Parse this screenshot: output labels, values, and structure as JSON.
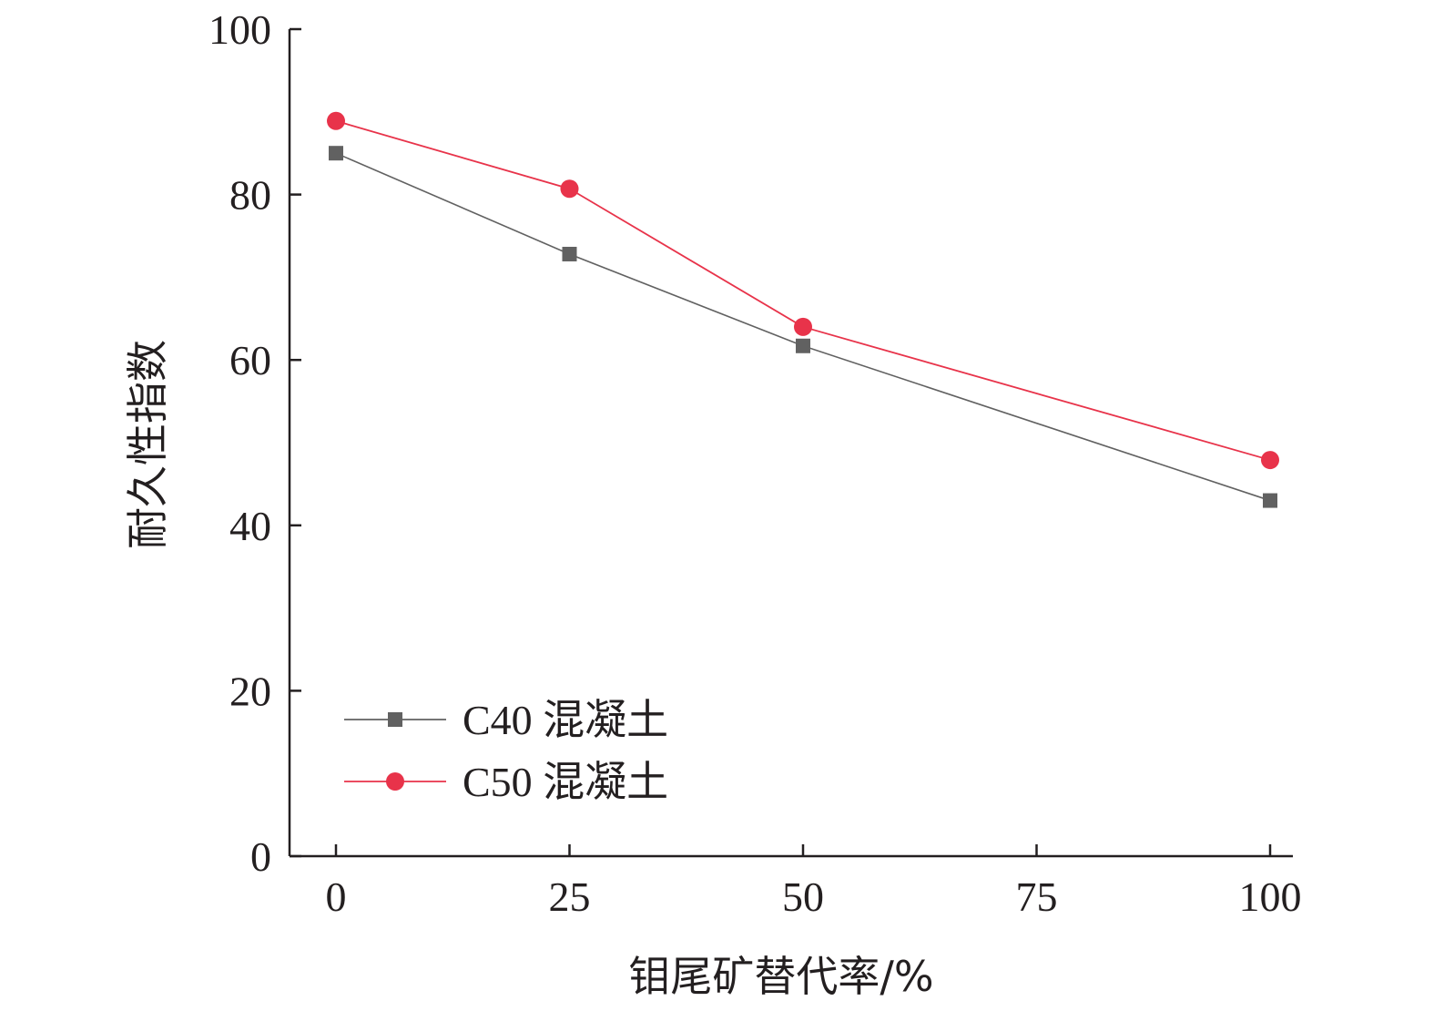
{
  "chart_data": {
    "type": "line",
    "title": "",
    "xlabel": "钼尾矿替代率/%",
    "ylabel": "耐久性指数",
    "x": [
      0,
      25,
      50,
      75,
      100
    ],
    "x_ticks": [
      "0",
      "25",
      "50",
      "75",
      "100"
    ],
    "y_ticks": [
      "0",
      "20",
      "40",
      "60",
      "80",
      "100"
    ],
    "xlim": [
      -5,
      100
    ],
    "ylim": [
      0,
      100
    ],
    "grid": false,
    "legend_position": "bottom-left",
    "series": [
      {
        "name": "C40 混凝土",
        "marker": "square",
        "color": "#616161",
        "x": [
          0,
          25,
          50,
          100
        ],
        "values": [
          85.0,
          72.8,
          61.7,
          43.0
        ]
      },
      {
        "name": "C50 混凝土",
        "marker": "circle",
        "color": "#e8334a",
        "x": [
          0,
          25,
          50,
          100
        ],
        "values": [
          88.9,
          80.7,
          64.0,
          47.9
        ]
      }
    ]
  }
}
